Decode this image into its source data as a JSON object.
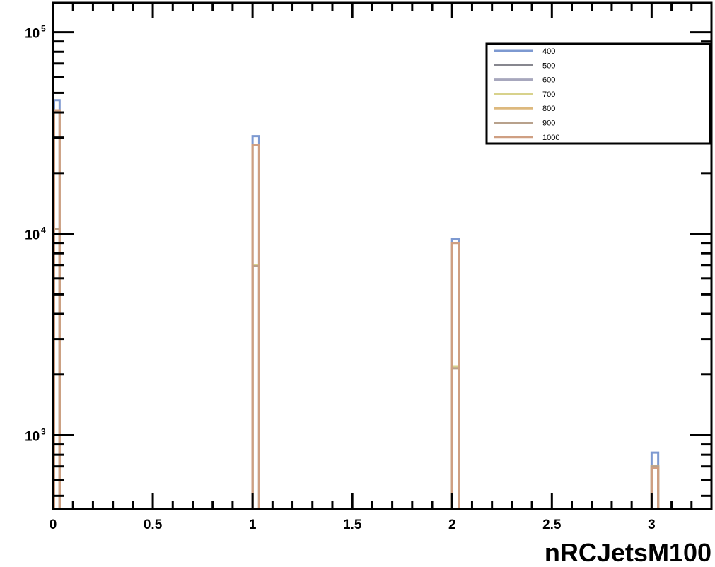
{
  "chart_data": {
    "type": "histogram",
    "x_title": "nRCJetsM100",
    "x_range": [
      0,
      3.3
    ],
    "y_range": [
      430,
      140000
    ],
    "y_scale": "log",
    "bin_width": 0.033,
    "x_ticks": [
      "0",
      "0.5",
      "1",
      "1.5",
      "2",
      "2.5",
      "3"
    ],
    "y_tick_values": [
      1000,
      10000,
      100000
    ],
    "y_ticks": [
      {
        "base": "10",
        "exp": "3"
      },
      {
        "base": "10",
        "exp": "4"
      },
      {
        "base": "10",
        "exp": "5"
      }
    ],
    "legend_position": "top-right",
    "series": [
      {
        "name": "400",
        "color": "#7d99d1",
        "bins": [
          [
            0,
            46000
          ],
          [
            1,
            30500
          ],
          [
            2,
            9400
          ],
          [
            3,
            820
          ]
        ]
      },
      {
        "name": "500",
        "color": "#87878f",
        "bins": [
          [
            0,
            10500
          ],
          [
            1,
            7000
          ],
          [
            2,
            2200
          ],
          [
            3,
            700
          ]
        ]
      },
      {
        "name": "600",
        "color": "#a7a7bd",
        "bins": [
          [
            0,
            10500
          ],
          [
            1,
            7000
          ],
          [
            2,
            2200
          ],
          [
            3,
            700
          ]
        ]
      },
      {
        "name": "700",
        "color": "#d8d28c",
        "bins": [
          [
            0,
            10500
          ],
          [
            1,
            7000
          ],
          [
            2,
            2200
          ],
          [
            3,
            700
          ]
        ]
      },
      {
        "name": "800",
        "color": "#ddb97e",
        "bins": [
          [
            0,
            41000
          ],
          [
            1,
            27500
          ],
          [
            2,
            9000
          ],
          [
            3,
            700
          ]
        ]
      },
      {
        "name": "900",
        "color": "#b8a18c",
        "bins": [
          [
            0,
            10500
          ],
          [
            1,
            6900
          ],
          [
            2,
            2150
          ],
          [
            3,
            700
          ]
        ]
      },
      {
        "name": "1000",
        "color": "#cf9f82",
        "bins": [
          [
            0,
            41000
          ],
          [
            1,
            27500
          ],
          [
            2,
            9000
          ],
          [
            3,
            690
          ]
        ]
      }
    ]
  }
}
